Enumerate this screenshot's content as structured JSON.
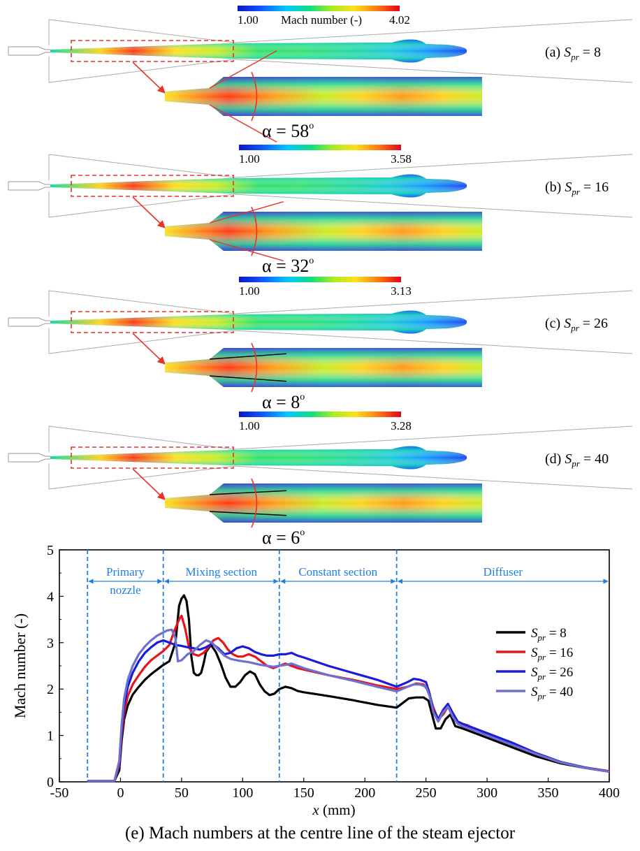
{
  "panels": [
    {
      "cb_min": "1.00",
      "cb_max": "4.02",
      "cb_label": "Mach number (-)",
      "label_prefix": "(a) ",
      "sub": "pr",
      "label_value": " = 8",
      "angle": "α = 58",
      "deg": "o"
    },
    {
      "cb_min": "1.00",
      "cb_max": "3.58",
      "cb_label": "",
      "label_prefix": "(b) ",
      "sub": "pr",
      "label_value": " = 16",
      "angle": "α = 32",
      "deg": "o"
    },
    {
      "cb_min": "1.00",
      "cb_max": "3.13",
      "cb_label": "",
      "label_prefix": "(c) ",
      "sub": "pr",
      "label_value": " = 26",
      "angle": "α = 8",
      "deg": "o"
    },
    {
      "cb_min": "1.00",
      "cb_max": "3.28",
      "cb_label": "",
      "label_prefix": "(d) ",
      "sub": "pr",
      "label_value": " = 40",
      "angle": "α = 6",
      "deg": "o"
    }
  ],
  "colors": {
    "dashed_box": "#e8322b",
    "arrow": "#e8322b",
    "section_line": "#1f7fe0"
  },
  "chart_data": {
    "type": "line",
    "xlabel": "x (mm)",
    "ylabel": "Mach number (-)",
    "xlim": [
      -50,
      400
    ],
    "ylim": [
      0,
      5
    ],
    "xticks": [
      "-50",
      "0",
      "50",
      "100",
      "150",
      "200",
      "250",
      "300",
      "350",
      "400"
    ],
    "yticks": [
      "0",
      "1",
      "2",
      "3",
      "4",
      "5"
    ],
    "sections": [
      {
        "label": "Primary",
        "label2": "nozzle",
        "from": -27,
        "to": 35
      },
      {
        "label": "Mixing section",
        "label2": "",
        "from": 35,
        "to": 130
      },
      {
        "label": "Constant section",
        "label2": "",
        "from": 130,
        "to": 226
      },
      {
        "label": "Diffuser",
        "label2": "",
        "from": 226,
        "to": 400
      }
    ],
    "section_lines": [
      -27,
      35,
      130,
      226
    ],
    "legend_position": "center-right",
    "series": [
      {
        "name_prefix": "S",
        "name_sub": "pr",
        "name_suffix": " = 8",
        "color": "#000000",
        "x": [
          -27,
          -5,
          -1,
          1,
          3,
          6,
          10,
          15,
          20,
          25,
          30,
          35,
          40,
          45,
          48,
          50,
          52,
          54,
          56,
          58,
          60,
          62,
          64,
          66,
          68,
          70,
          74,
          78,
          82,
          86,
          90,
          94,
          98,
          102,
          106,
          110,
          114,
          118,
          122,
          126,
          130,
          135,
          140,
          145,
          150,
          170,
          190,
          210,
          226,
          232,
          236,
          242,
          248,
          252,
          255,
          258,
          262,
          266,
          270,
          274,
          280,
          300,
          320,
          340,
          360,
          380,
          400
        ],
        "y": [
          0.02,
          0.02,
          0.25,
          0.9,
          1.35,
          1.65,
          1.88,
          2.05,
          2.2,
          2.32,
          2.42,
          2.52,
          2.6,
          3.0,
          3.8,
          3.95,
          4.02,
          3.9,
          3.5,
          2.7,
          2.35,
          2.3,
          2.3,
          2.35,
          2.55,
          2.8,
          2.95,
          2.8,
          2.55,
          2.25,
          2.05,
          2.05,
          2.15,
          2.3,
          2.38,
          2.32,
          2.1,
          1.95,
          1.87,
          1.9,
          2.0,
          2.05,
          2.02,
          1.96,
          1.93,
          1.85,
          1.76,
          1.66,
          1.6,
          1.72,
          1.8,
          1.82,
          1.82,
          1.75,
          1.45,
          1.15,
          1.15,
          1.35,
          1.45,
          1.2,
          1.15,
          0.95,
          0.75,
          0.55,
          0.4,
          0.3,
          0.22
        ]
      },
      {
        "name_prefix": "S",
        "name_sub": "pr",
        "name_suffix": " = 16",
        "color": "#e8141c",
        "x": [
          -27,
          -5,
          -1,
          1,
          3,
          6,
          10,
          15,
          20,
          25,
          30,
          35,
          40,
          44,
          48,
          50,
          53,
          56,
          60,
          64,
          68,
          72,
          76,
          80,
          84,
          88,
          92,
          96,
          100,
          105,
          110,
          115,
          120,
          125,
          130,
          135,
          140,
          145,
          150,
          170,
          190,
          210,
          226,
          235,
          242,
          248,
          252,
          256,
          260,
          264,
          268,
          272,
          276,
          280,
          284,
          300,
          320,
          340,
          360,
          380,
          400
        ],
        "y": [
          0.02,
          0.02,
          0.35,
          1.05,
          1.5,
          1.85,
          2.1,
          2.3,
          2.48,
          2.62,
          2.72,
          2.82,
          2.95,
          3.25,
          3.5,
          3.58,
          3.3,
          2.9,
          2.75,
          2.72,
          2.78,
          2.9,
          3.05,
          3.1,
          3.0,
          2.85,
          2.75,
          2.7,
          2.7,
          2.75,
          2.7,
          2.6,
          2.5,
          2.45,
          2.5,
          2.55,
          2.5,
          2.45,
          2.42,
          2.3,
          2.2,
          2.08,
          2.0,
          2.05,
          2.12,
          2.1,
          1.95,
          1.6,
          1.35,
          1.45,
          1.62,
          1.45,
          1.28,
          1.25,
          1.22,
          1.0,
          0.8,
          0.6,
          0.42,
          0.31,
          0.23
        ]
      },
      {
        "name_prefix": "S",
        "name_sub": "pr",
        "name_suffix": " = 26",
        "color": "#1a1adb",
        "x": [
          -27,
          -5,
          -1,
          1,
          3,
          6,
          10,
          15,
          20,
          25,
          30,
          35,
          40,
          45,
          50,
          55,
          60,
          65,
          70,
          75,
          80,
          85,
          90,
          95,
          100,
          105,
          110,
          115,
          120,
          125,
          130,
          135,
          140,
          145,
          150,
          170,
          190,
          210,
          226,
          235,
          240,
          245,
          250,
          253,
          256,
          260,
          264,
          268,
          272,
          276,
          280,
          300,
          320,
          340,
          360,
          380,
          400
        ],
        "y": [
          0.02,
          0.02,
          0.4,
          1.15,
          1.65,
          2.05,
          2.35,
          2.6,
          2.78,
          2.9,
          3.0,
          3.05,
          3.0,
          2.95,
          2.93,
          2.9,
          2.88,
          2.85,
          2.9,
          2.98,
          2.88,
          2.75,
          2.78,
          2.88,
          2.92,
          2.88,
          2.8,
          2.75,
          2.72,
          2.72,
          2.75,
          2.75,
          2.78,
          2.72,
          2.68,
          2.5,
          2.35,
          2.2,
          2.05,
          2.15,
          2.22,
          2.2,
          2.15,
          1.9,
          1.55,
          1.35,
          1.55,
          1.68,
          1.48,
          1.3,
          1.25,
          1.05,
          0.85,
          0.62,
          0.43,
          0.31,
          0.22
        ]
      },
      {
        "name_prefix": "S",
        "name_sub": "pr",
        "name_suffix": " = 40",
        "color": "#6f6fd0",
        "x": [
          -27,
          -5,
          -1,
          1,
          3,
          6,
          10,
          15,
          20,
          25,
          30,
          35,
          38,
          42,
          45,
          47,
          50,
          55,
          60,
          65,
          70,
          75,
          80,
          85,
          90,
          95,
          100,
          105,
          110,
          115,
          120,
          125,
          130,
          135,
          140,
          145,
          150,
          170,
          190,
          210,
          226,
          235,
          240,
          245,
          250,
          253,
          256,
          260,
          264,
          268,
          272,
          276,
          280,
          300,
          320,
          340,
          360,
          380,
          400
        ],
        "y": [
          0.02,
          0.02,
          0.45,
          1.25,
          1.8,
          2.2,
          2.5,
          2.75,
          2.92,
          3.05,
          3.15,
          3.22,
          3.26,
          3.28,
          3.1,
          2.6,
          2.62,
          2.75,
          2.82,
          2.95,
          3.05,
          3.0,
          2.85,
          2.72,
          2.65,
          2.62,
          2.6,
          2.58,
          2.55,
          2.52,
          2.5,
          2.48,
          2.5,
          2.52,
          2.55,
          2.5,
          2.45,
          2.3,
          2.18,
          2.05,
          1.95,
          2.05,
          2.1,
          2.1,
          2.05,
          1.85,
          1.5,
          1.3,
          1.5,
          1.62,
          1.4,
          1.25,
          1.2,
          1.0,
          0.8,
          0.6,
          0.42,
          0.3,
          0.22
        ]
      }
    ],
    "caption": "(e) Mach numbers at the centre line of the steam ejector"
  }
}
